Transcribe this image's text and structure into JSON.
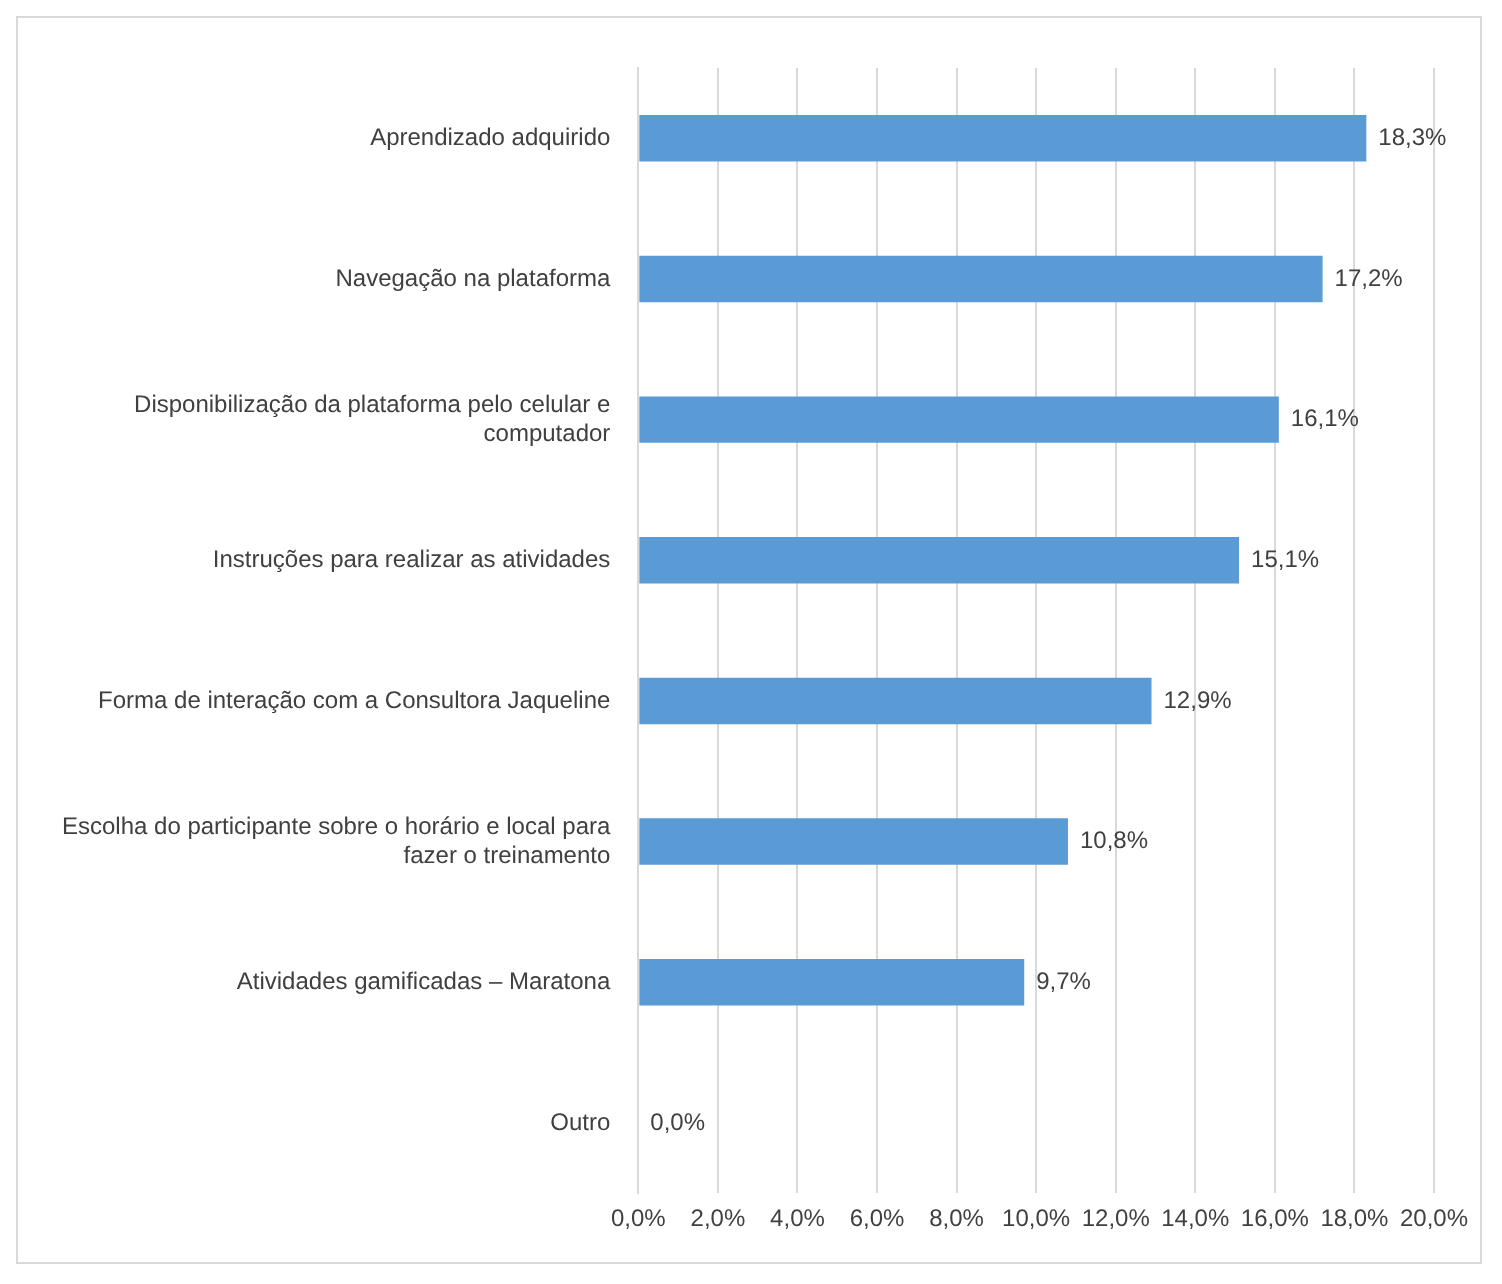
{
  "chart_data": {
    "type": "bar",
    "orientation": "horizontal",
    "categories": [
      "Aprendizado adquirido",
      "Navegação na plataforma",
      "Disponibilização da plataforma pelo celular e computador",
      "Instruções para realizar as atividades",
      "Forma de interação com a Consultora Jaqueline",
      "Escolha do participante sobre o horário e local para fazer o treinamento",
      "Atividades gamificadas – Maratona",
      "Outro"
    ],
    "values": [
      18.3,
      17.2,
      16.1,
      15.1,
      12.9,
      10.8,
      9.7,
      0.0
    ],
    "value_labels": [
      "18,3%",
      "17,2%",
      "16,1%",
      "15,1%",
      "12,9%",
      "10,8%",
      "9,7%",
      "0,0%"
    ],
    "color": "#5b9bd5",
    "xlim": [
      0,
      20
    ],
    "xticks": [
      {
        "value": 0,
        "label": "0,0%"
      },
      {
        "value": 2,
        "label": "2,0%"
      },
      {
        "value": 4,
        "label": "4,0%"
      },
      {
        "value": 6,
        "label": "6,0%"
      },
      {
        "value": 8,
        "label": "8,0%"
      },
      {
        "value": 10,
        "label": "10,0%"
      },
      {
        "value": 12,
        "label": "12,0%"
      },
      {
        "value": 14,
        "label": "14,0%"
      },
      {
        "value": 16,
        "label": "16,0%"
      },
      {
        "value": 18,
        "label": "18,0%"
      },
      {
        "value": 20,
        "label": "20,0%"
      }
    ],
    "grid": "x"
  }
}
